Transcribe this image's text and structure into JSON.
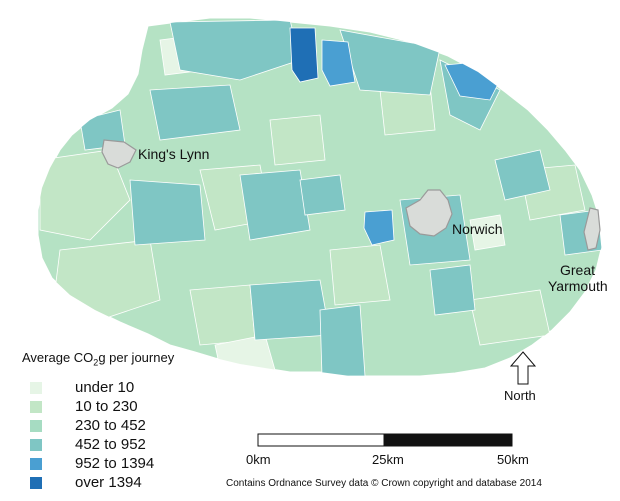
{
  "places": {
    "kings_lynn": "King's Lynn",
    "norwich": "Norwich",
    "great": "Great",
    "yarmouth": "Yarmouth"
  },
  "legend": {
    "title_prefix": "Average CO",
    "title_sub": "2",
    "title_suffix": "g per journey",
    "items": [
      {
        "label": "under  10",
        "color": "#e6f5e6"
      },
      {
        "label": "10 to 230",
        "color": "#c2e6c6"
      },
      {
        "label": "230 to 452",
        "color": "#a6dcc2"
      },
      {
        "label": "452 to 952",
        "color": "#7fc6c4"
      },
      {
        "label": "952 to 1394",
        "color": "#4a9fd2"
      },
      {
        "label": "over 1394",
        "color": "#1f6fb5"
      }
    ]
  },
  "scale_bar": {
    "labels": [
      "0km",
      "25km",
      "50km"
    ]
  },
  "north": {
    "label": "North",
    "icon": "north-arrow-icon"
  },
  "credit": "Contains Ordnance Survey data © Crown copyright and database 2014",
  "colors": {
    "town_outline": "#9a9a9a",
    "town_fill": "#d9dcd9",
    "boundary": "#ffffff"
  }
}
